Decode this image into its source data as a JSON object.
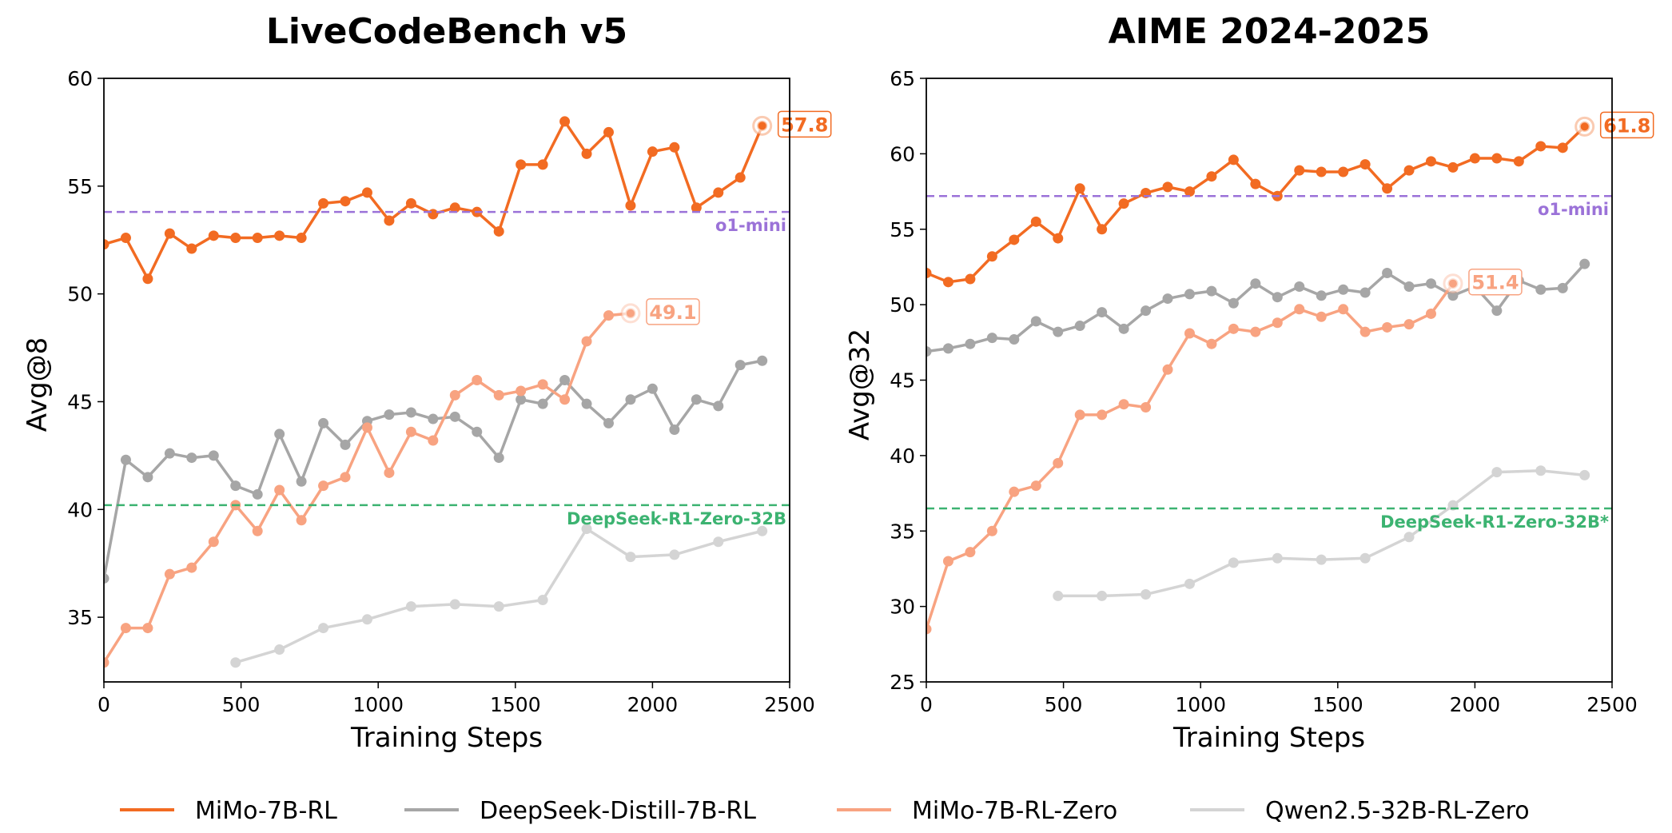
{
  "legend": [
    {
      "name": "MiMo-7B-RL",
      "color": "#f26b22"
    },
    {
      "name": "DeepSeek-Distill-7B-RL",
      "color": "#a6a6a6"
    },
    {
      "name": "MiMo-7B-RL-Zero",
      "color": "#f8a381"
    },
    {
      "name": "Qwen2.5-32B-RL-Zero",
      "color": "#d4d4d4"
    }
  ],
  "chart_data": [
    {
      "type": "line",
      "title": "LiveCodeBench v5",
      "xlabel": "Training Steps",
      "ylabel": "Avg@8",
      "xlim": [
        0,
        2500
      ],
      "ylim": [
        32,
        60
      ],
      "xticks": [
        0,
        500,
        1000,
        1500,
        2000,
        2500
      ],
      "yticks": [
        35,
        40,
        45,
        50,
        55,
        60
      ],
      "grid": false,
      "reference_lines": [
        {
          "label": "o1-mini",
          "y": 53.8,
          "color": "#9b72d8"
        },
        {
          "label": "DeepSeek-R1-Zero-32B",
          "y": 40.2,
          "color": "#3cb371"
        }
      ],
      "series": [
        {
          "name": "MiMo-7B-RL",
          "color": "#f26b22",
          "end_label": "57.8",
          "x": [
            0,
            80,
            160,
            240,
            320,
            400,
            480,
            560,
            640,
            720,
            800,
            880,
            960,
            1040,
            1120,
            1200,
            1280,
            1360,
            1440,
            1520,
            1600,
            1680,
            1760,
            1840,
            1920,
            2000,
            2080,
            2160,
            2240,
            2320,
            2400
          ],
          "y": [
            52.3,
            52.6,
            50.7,
            52.8,
            52.1,
            52.7,
            52.6,
            52.6,
            52.7,
            52.6,
            54.2,
            54.3,
            54.7,
            53.4,
            54.2,
            53.7,
            54.0,
            53.8,
            52.9,
            56.0,
            56.0,
            58.0,
            56.5,
            57.5,
            54.1,
            56.6,
            56.8,
            54.0,
            54.7,
            55.4,
            57.8
          ]
        },
        {
          "name": "DeepSeek-Distill-7B-RL",
          "color": "#a6a6a6",
          "x": [
            0,
            80,
            160,
            240,
            320,
            400,
            480,
            560,
            640,
            720,
            800,
            880,
            960,
            1040,
            1120,
            1200,
            1280,
            1360,
            1440,
            1520,
            1600,
            1680,
            1760,
            1840,
            1920,
            2000,
            2080,
            2160,
            2240,
            2320,
            2400
          ],
          "y": [
            36.8,
            42.3,
            41.5,
            42.6,
            42.4,
            42.5,
            41.1,
            40.7,
            43.5,
            41.3,
            44.0,
            43.0,
            44.1,
            44.4,
            44.5,
            44.2,
            44.3,
            43.6,
            42.4,
            45.1,
            44.9,
            46.0,
            44.9,
            44.0,
            45.1,
            45.6,
            43.7,
            45.1,
            44.8,
            46.7,
            46.9
          ]
        },
        {
          "name": "MiMo-7B-RL-Zero",
          "color": "#f8a381",
          "end_label": "49.1",
          "x": [
            0,
            80,
            160,
            240,
            320,
            400,
            480,
            560,
            640,
            720,
            800,
            880,
            960,
            1040,
            1120,
            1200,
            1280,
            1360,
            1440,
            1520,
            1600,
            1680,
            1760,
            1840,
            1920
          ],
          "y": [
            32.9,
            34.5,
            34.5,
            37.0,
            37.3,
            38.5,
            40.2,
            39.0,
            40.9,
            39.5,
            41.1,
            41.5,
            43.8,
            41.7,
            43.6,
            43.2,
            45.3,
            46.0,
            45.3,
            45.5,
            45.8,
            45.1,
            47.8,
            49.0,
            49.1
          ]
        },
        {
          "name": "Qwen2.5-32B-RL-Zero",
          "color": "#d4d4d4",
          "x": [
            480,
            640,
            800,
            960,
            1120,
            1280,
            1440,
            1600,
            1760,
            1920,
            2080,
            2240,
            2400
          ],
          "y": [
            32.9,
            33.5,
            34.5,
            34.9,
            35.5,
            35.6,
            35.5,
            35.8,
            39.1,
            37.8,
            37.9,
            38.5,
            39.0
          ]
        }
      ]
    },
    {
      "type": "line",
      "title": "AIME 2024-2025",
      "xlabel": "Training Steps",
      "ylabel": "Avg@32",
      "xlim": [
        0,
        2500
      ],
      "ylim": [
        25,
        65
      ],
      "xticks": [
        0,
        500,
        1000,
        1500,
        2000,
        2500
      ],
      "yticks": [
        25,
        30,
        35,
        40,
        45,
        50,
        55,
        60,
        65
      ],
      "grid": false,
      "reference_lines": [
        {
          "label": "o1-mini",
          "y": 57.2,
          "color": "#9b72d8"
        },
        {
          "label": "DeepSeek-R1-Zero-32B*",
          "y": 36.5,
          "color": "#3cb371"
        }
      ],
      "series": [
        {
          "name": "MiMo-7B-RL",
          "color": "#f26b22",
          "end_label": "61.8",
          "x": [
            0,
            80,
            160,
            240,
            320,
            400,
            480,
            560,
            640,
            720,
            800,
            880,
            960,
            1040,
            1120,
            1200,
            1280,
            1360,
            1440,
            1520,
            1600,
            1680,
            1760,
            1840,
            1920,
            2000,
            2080,
            2160,
            2240,
            2320,
            2400
          ],
          "y": [
            52.1,
            51.5,
            51.7,
            53.2,
            54.3,
            55.5,
            54.4,
            57.7,
            55.0,
            56.7,
            57.4,
            57.8,
            57.5,
            58.5,
            59.6,
            58.0,
            57.2,
            58.9,
            58.8,
            58.8,
            59.3,
            57.7,
            58.9,
            59.5,
            59.1,
            59.7,
            59.7,
            59.5,
            60.5,
            60.4,
            61.8
          ]
        },
        {
          "name": "DeepSeek-Distill-7B-RL",
          "color": "#a6a6a6",
          "x": [
            0,
            80,
            160,
            240,
            320,
            400,
            480,
            560,
            640,
            720,
            800,
            880,
            960,
            1040,
            1120,
            1200,
            1280,
            1360,
            1440,
            1520,
            1600,
            1680,
            1760,
            1840,
            1920,
            2000,
            2080,
            2160,
            2240,
            2320,
            2400
          ],
          "y": [
            46.9,
            47.1,
            47.4,
            47.8,
            47.7,
            48.9,
            48.2,
            48.6,
            49.5,
            48.4,
            49.6,
            50.4,
            50.7,
            50.9,
            50.1,
            51.4,
            50.5,
            51.2,
            50.6,
            51.0,
            50.8,
            52.1,
            51.2,
            51.4,
            50.6,
            51.2,
            49.6,
            51.6,
            51.0,
            51.1,
            52.7
          ]
        },
        {
          "name": "MiMo-7B-RL-Zero",
          "color": "#f8a381",
          "end_label": "51.4",
          "x": [
            0,
            80,
            160,
            240,
            320,
            400,
            480,
            560,
            640,
            720,
            800,
            880,
            960,
            1040,
            1120,
            1200,
            1280,
            1360,
            1440,
            1520,
            1600,
            1680,
            1760,
            1840,
            1920
          ],
          "y": [
            28.5,
            33.0,
            33.6,
            35.0,
            37.6,
            38.0,
            39.5,
            42.7,
            42.7,
            43.4,
            43.2,
            45.7,
            48.1,
            47.4,
            48.4,
            48.2,
            48.8,
            49.7,
            49.2,
            49.7,
            48.2,
            48.5,
            48.7,
            49.4,
            51.4
          ]
        },
        {
          "name": "Qwen2.5-32B-RL-Zero",
          "color": "#d4d4d4",
          "x": [
            480,
            640,
            800,
            960,
            1120,
            1280,
            1440,
            1600,
            1760,
            1920,
            2080,
            2240,
            2400
          ],
          "y": [
            30.7,
            30.7,
            30.8,
            31.5,
            32.9,
            33.2,
            33.1,
            33.2,
            34.6,
            36.7,
            38.9,
            39.0,
            38.7
          ]
        }
      ]
    }
  ]
}
